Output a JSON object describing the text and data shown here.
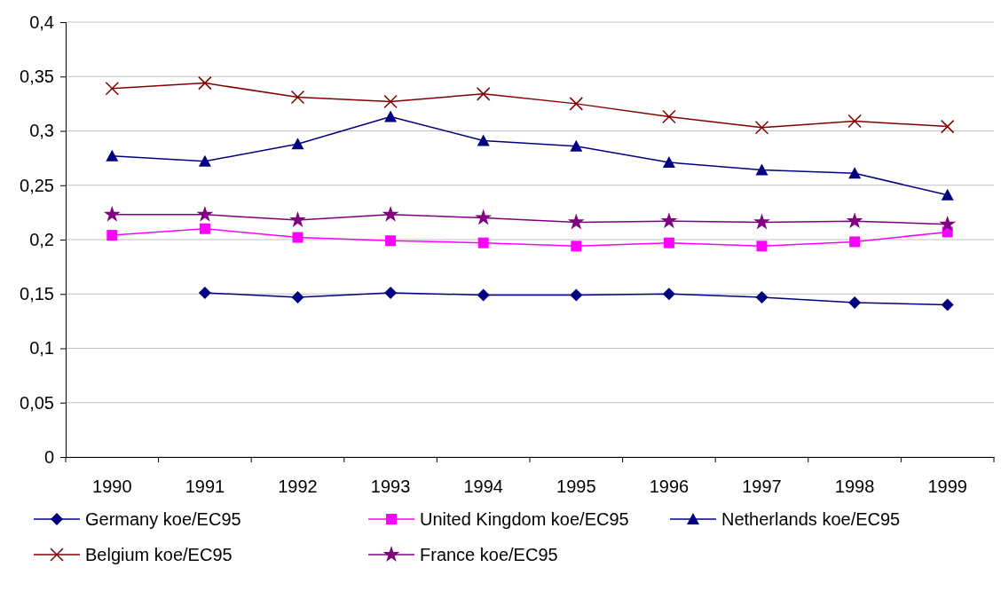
{
  "chart_data": {
    "type": "line",
    "categories": [
      "1990",
      "1991",
      "1992",
      "1993",
      "1994",
      "1995",
      "1996",
      "1997",
      "1998",
      "1999"
    ],
    "ylim": [
      0,
      0.4
    ],
    "yticks": [
      0,
      {
        "value": 0.05,
        "label": "0,05"
      },
      {
        "value": 0.1,
        "label": "0,1"
      },
      {
        "value": 0.15,
        "label": "0,15"
      },
      {
        "value": 0.2,
        "label": "0,2"
      },
      {
        "value": 0.25,
        "label": "0,25"
      },
      {
        "value": 0.3,
        "label": "0,3"
      },
      {
        "value": 0.35,
        "label": "0,35"
      },
      {
        "value": 0.4,
        "label": "0,4"
      }
    ],
    "grid": "y",
    "legend": "bottom",
    "line_style": "solid",
    "series": [
      {
        "name": "Germany koe/EC95",
        "color": "#000080",
        "marker": "diamond",
        "values": [
          null,
          0.151,
          0.147,
          0.151,
          0.149,
          0.149,
          0.15,
          0.147,
          0.142,
          0.14
        ]
      },
      {
        "name": "United Kingdom koe/EC95",
        "color": "#ff00ff",
        "marker": "square",
        "values": [
          0.204,
          0.21,
          0.202,
          0.199,
          0.197,
          0.194,
          0.197,
          0.194,
          0.198,
          0.207
        ]
      },
      {
        "name": "Netherlands koe/EC95",
        "color": "#000080",
        "marker": "triangle",
        "values": [
          0.277,
          0.272,
          0.288,
          0.313,
          0.291,
          0.286,
          0.271,
          0.264,
          0.261,
          0.241
        ]
      },
      {
        "name": "Belgium koe/EC95",
        "color": "#800000",
        "marker": "cross",
        "values": [
          0.339,
          0.344,
          0.331,
          0.327,
          0.334,
          0.325,
          0.313,
          0.303,
          0.309,
          0.304
        ]
      },
      {
        "name": "France koe/EC95",
        "color": "#800080",
        "marker": "star",
        "values": [
          0.223,
          0.223,
          0.218,
          0.223,
          0.22,
          0.216,
          0.217,
          0.216,
          0.217,
          0.214
        ]
      }
    ]
  }
}
